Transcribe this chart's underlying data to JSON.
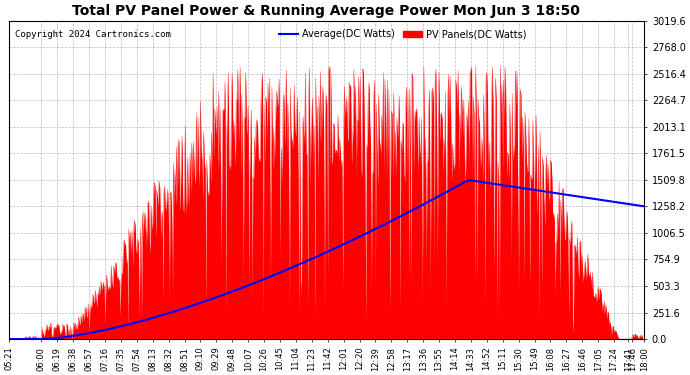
{
  "title": "Total PV Panel Power & Running Average Power Mon Jun 3 18:50",
  "copyright": "Copyright 2024 Cartronics.com",
  "legend_avg": "Average(DC Watts)",
  "legend_pv": "PV Panels(DC Watts)",
  "ylabel_values": [
    0.0,
    251.6,
    503.3,
    754.9,
    1006.5,
    1258.2,
    1509.8,
    1761.5,
    2013.1,
    2264.7,
    2516.4,
    2768.0,
    3019.6
  ],
  "ymax": 3019.6,
  "ymin": 0.0,
  "bg_color": "#ffffff",
  "grid_color": "#aaaaaa",
  "pv_color": "#ff0000",
  "avg_color": "#0000ff",
  "title_color": "#000000",
  "copyright_color": "#000000",
  "x_tick_labels": [
    "05:21",
    "06:00",
    "06:19",
    "06:38",
    "06:57",
    "07:16",
    "07:35",
    "07:54",
    "08:13",
    "08:32",
    "08:51",
    "09:10",
    "09:29",
    "09:48",
    "10:07",
    "10:26",
    "10:45",
    "11:04",
    "11:23",
    "11:42",
    "12:01",
    "12:20",
    "12:39",
    "12:58",
    "13:17",
    "13:36",
    "13:55",
    "14:14",
    "14:33",
    "14:52",
    "15:11",
    "15:30",
    "15:49",
    "16:08",
    "16:27",
    "16:46",
    "17:05",
    "17:24",
    "17:41",
    "17:46",
    "18:00"
  ]
}
